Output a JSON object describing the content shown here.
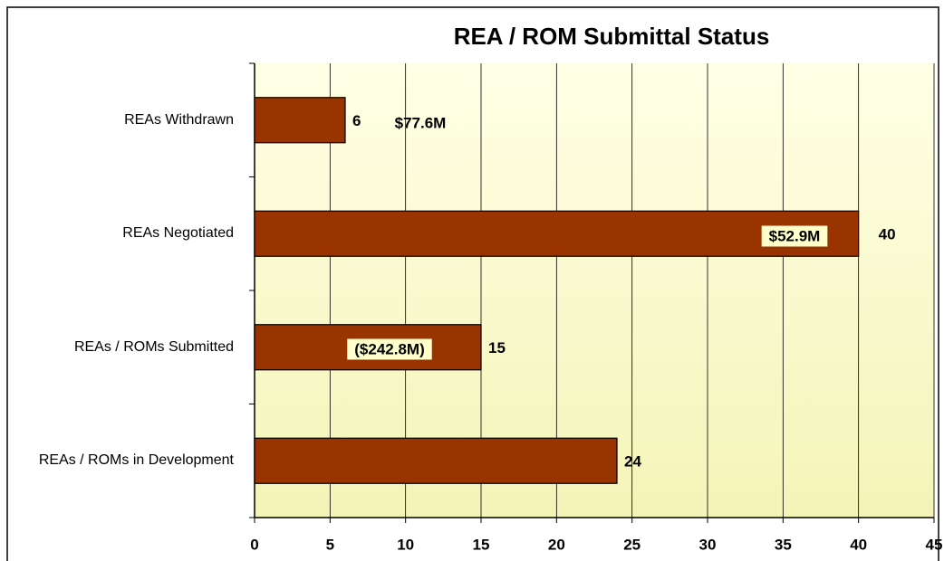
{
  "chart_data": {
    "type": "barh",
    "title": "REA / ROM Submittal Status",
    "categories": [
      "REAs Withdrawn",
      "REAs Negotiated",
      "REAs / ROMs Submitted",
      "REAs / ROMs in Development"
    ],
    "values": [
      6,
      40,
      15,
      24
    ],
    "color": "#993300",
    "xlim": [
      0,
      45
    ],
    "xticks": [
      0,
      5,
      10,
      15,
      20,
      25,
      30,
      35,
      40,
      45
    ],
    "grid": true,
    "annotations": [
      "$77.6M",
      "$52.9M",
      "($242.8M)"
    ]
  }
}
